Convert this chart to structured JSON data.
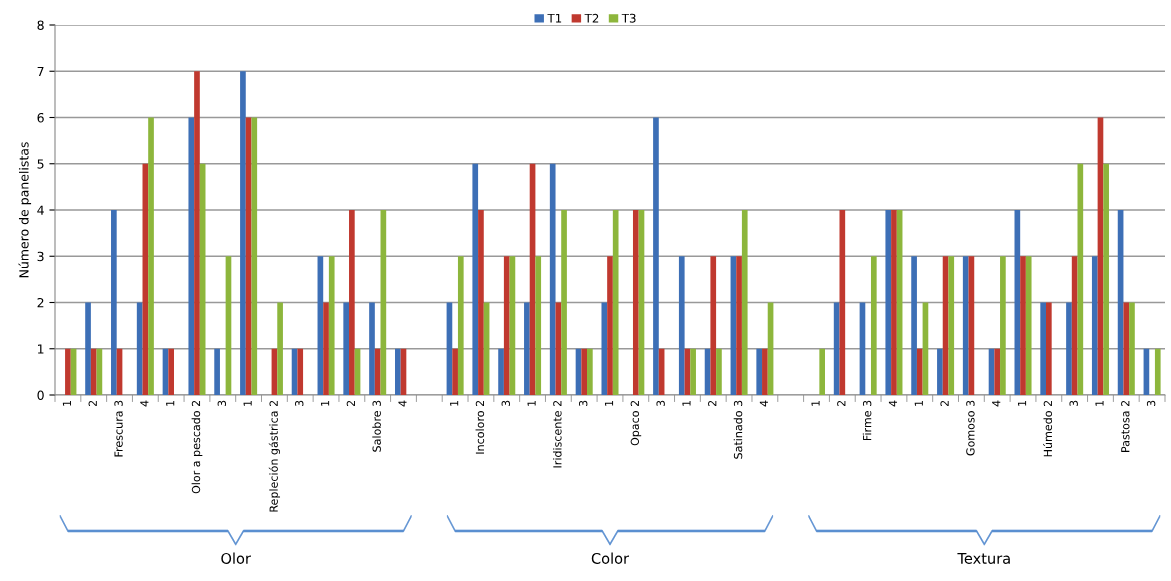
{
  "chart_data": {
    "type": "bar",
    "ylabel": "Número de panelistas",
    "categories": [
      "1",
      "2",
      "Frescura 3",
      "4",
      "1",
      "Olor a pescado 2",
      "3",
      "1",
      "Repleción gástrica 2",
      "3",
      "1",
      "2",
      "Salobre 3",
      "4",
      null,
      "1",
      "Incoloro 2",
      "3",
      "1",
      "Iridiscente 2",
      "3",
      "1",
      "Opaco 2",
      "3",
      "1",
      "2",
      "Satinado 3",
      "4",
      null,
      "1",
      "2",
      "Firme 3",
      "4",
      "1",
      "2",
      "Gomoso 3",
      "4",
      "1",
      "Húmedo 2",
      "3",
      "1",
      "Pastosa 2",
      "3"
    ],
    "series": [
      {
        "name": "T1",
        "color": "#3d6fb6",
        "values": [
          0,
          2,
          4,
          2,
          1,
          6,
          1,
          7,
          0,
          1,
          3,
          2,
          2,
          1,
          null,
          2,
          5,
          1,
          2,
          5,
          1,
          2,
          0,
          6,
          3,
          1,
          3,
          1,
          null,
          0,
          2,
          2,
          4,
          3,
          1,
          3,
          1,
          4,
          2,
          2,
          3,
          4,
          1
        ]
      },
      {
        "name": "T2",
        "color": "#c0392f",
        "values": [
          1,
          1,
          1,
          5,
          1,
          7,
          0,
          6,
          1,
          1,
          2,
          4,
          1,
          1,
          null,
          1,
          4,
          3,
          5,
          2,
          1,
          3,
          4,
          1,
          1,
          3,
          3,
          1,
          null,
          0,
          4,
          0,
          4,
          1,
          3,
          3,
          1,
          3,
          2,
          3,
          6,
          2,
          0
        ]
      },
      {
        "name": "T3",
        "color": "#8db63c",
        "values": [
          1,
          1,
          0,
          6,
          0,
          5,
          3,
          6,
          2,
          0,
          3,
          1,
          4,
          0,
          null,
          3,
          2,
          3,
          3,
          4,
          1,
          4,
          4,
          0,
          1,
          1,
          4,
          2,
          null,
          1,
          0,
          3,
          4,
          2,
          3,
          0,
          3,
          3,
          0,
          5,
          5,
          2,
          1
        ]
      }
    ],
    "ylim": [
      0,
      8
    ],
    "yticks": [
      0,
      1,
      2,
      3,
      4,
      5,
      6,
      7,
      8
    ],
    "grid": "y",
    "legend": "top",
    "annotations": [
      "Olor",
      "Color",
      "Textura"
    ]
  }
}
